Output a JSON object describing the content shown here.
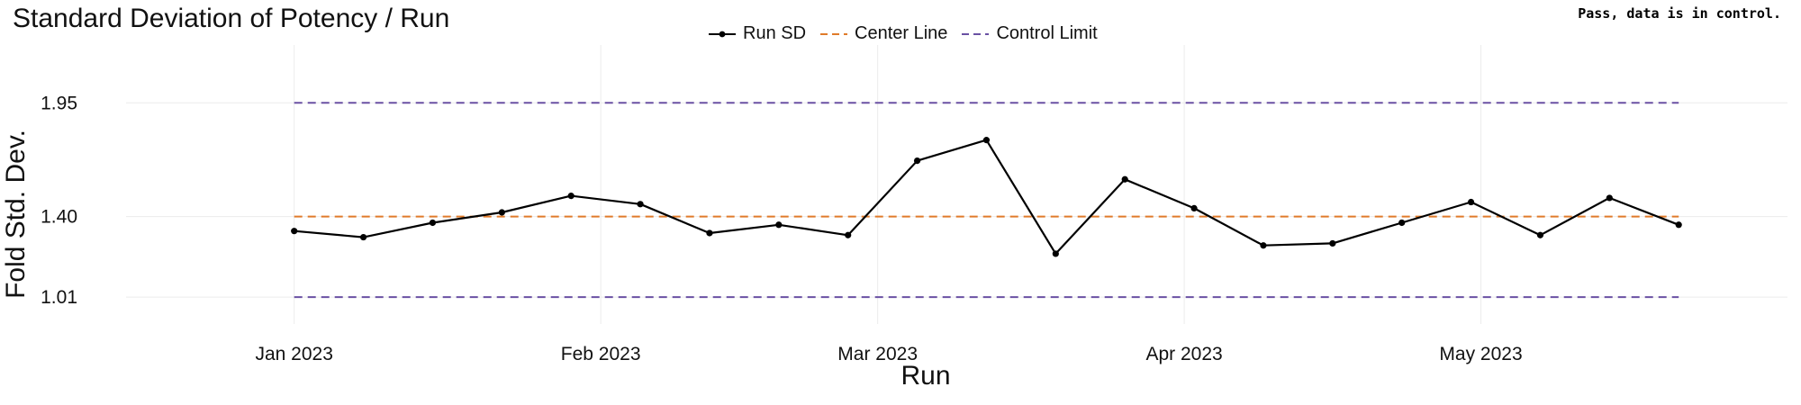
{
  "chart_data": {
    "type": "line",
    "title": "Standard Deviation of Potency / Run",
    "status_text": "Pass, data is in control.",
    "xlabel": "Run",
    "ylabel": "Fold Std. Dev.",
    "x_tick_labels": [
      "Jan 2023",
      "Feb 2023",
      "Mar 2023",
      "Apr 2023",
      "May 2023"
    ],
    "x_tick_dates": [
      "2023-01-01",
      "2023-02-01",
      "2023-03-01",
      "2023-04-01",
      "2023-05-01"
    ],
    "y_ticks": [
      1.01,
      1.4,
      1.95
    ],
    "y_tick_labels": [
      "1.01",
      "1.40",
      "1.95"
    ],
    "xlim": [
      "2022-12-15",
      "2023-06-01"
    ],
    "ylim": [
      0.88,
      2.23
    ],
    "grid": true,
    "legend_position": "top",
    "series": [
      {
        "name": "Run SD",
        "color": "#000000",
        "marker": "circle",
        "x": [
          "2023-01-01",
          "2023-01-08",
          "2023-01-15",
          "2023-01-22",
          "2023-01-29",
          "2023-02-05",
          "2023-02-12",
          "2023-02-19",
          "2023-02-26",
          "2023-03-05",
          "2023-03-12",
          "2023-03-19",
          "2023-03-26",
          "2023-04-02",
          "2023-04-09",
          "2023-04-16",
          "2023-04-23",
          "2023-04-30",
          "2023-05-07",
          "2023-05-14",
          "2023-05-21"
        ],
        "y": [
          1.33,
          1.3,
          1.37,
          1.42,
          1.5,
          1.46,
          1.32,
          1.36,
          1.31,
          1.67,
          1.77,
          1.22,
          1.58,
          1.44,
          1.26,
          1.27,
          1.37,
          1.47,
          1.31,
          1.49,
          1.36
        ]
      },
      {
        "name": "Center Line",
        "color": "#e07b2a",
        "style": "dashed",
        "y_const": 1.4
      },
      {
        "name": "Control Limit",
        "color": "#6a51a3",
        "style": "dashed",
        "y_const": [
          1.01,
          1.95
        ]
      }
    ]
  }
}
